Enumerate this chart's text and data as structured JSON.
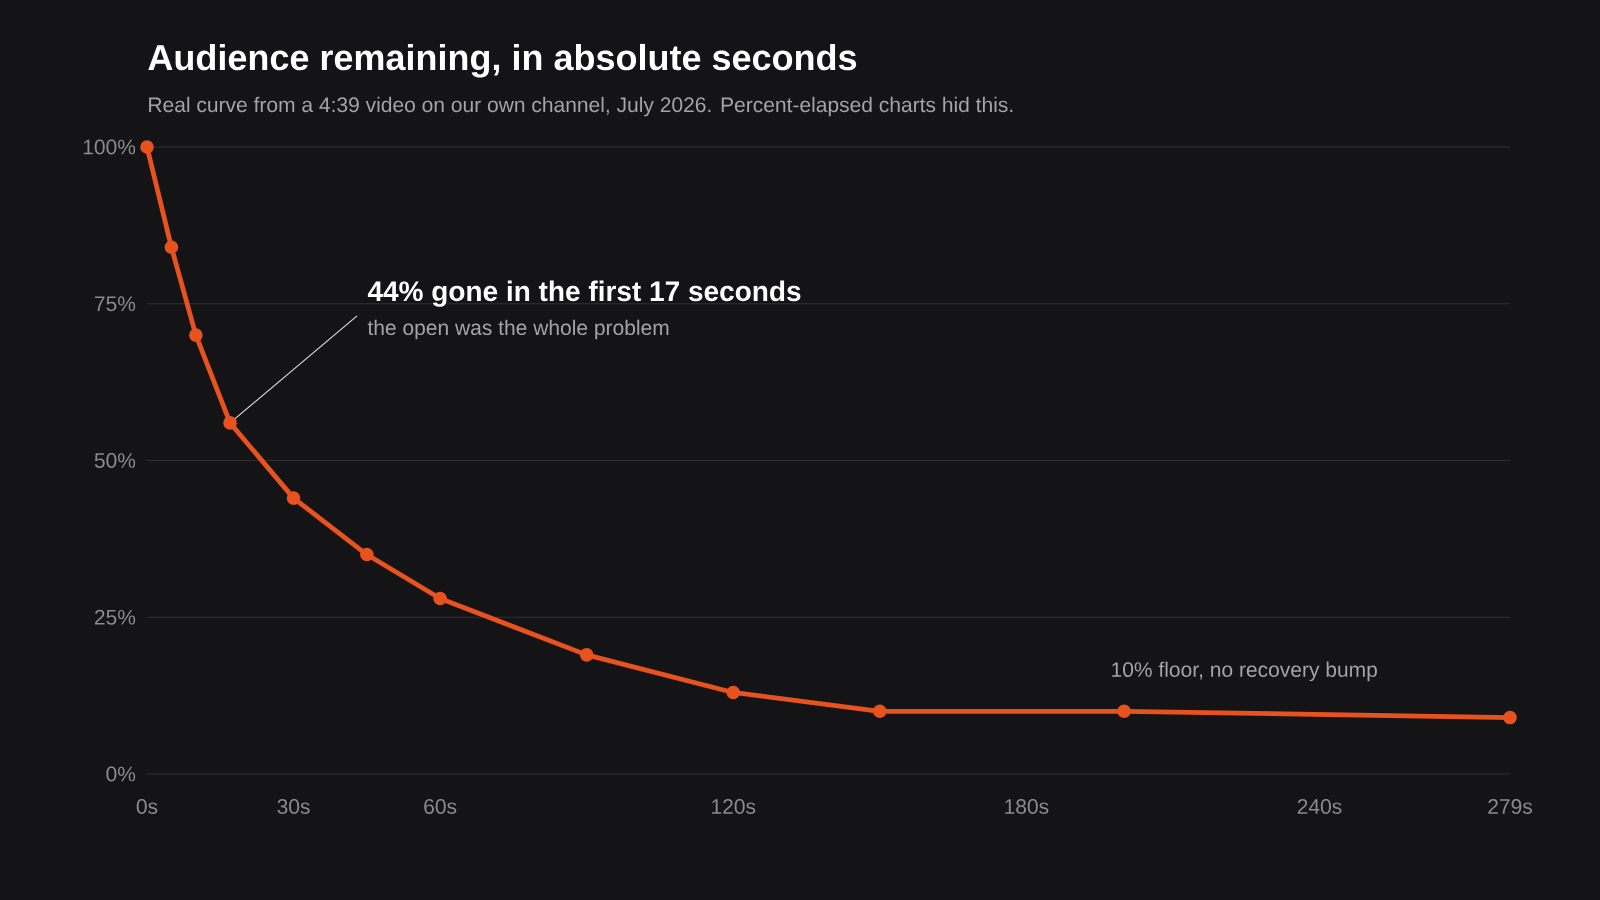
{
  "chart_data": {
    "type": "line",
    "title": "Audience remaining, in absolute seconds",
    "subtitle": "Real curve from a 4:39 video on our own channel, July 2026. Percent-elapsed charts hid this.",
    "x": [
      0,
      5,
      10,
      17,
      30,
      45,
      60,
      90,
      120,
      150,
      200,
      279
    ],
    "series": [
      {
        "color": "#e8521f",
        "values": [
          100,
          84,
          70,
          56,
          44,
          35,
          28,
          19,
          13,
          10,
          10,
          9
        ]
      }
    ],
    "xlim": [
      0,
      279
    ],
    "ylim": [
      0,
      100
    ],
    "xticks": [
      {
        "value": 0,
        "label": "0s"
      },
      {
        "value": 30,
        "label": "30s"
      },
      {
        "value": 60,
        "label": "60s"
      },
      {
        "value": 120,
        "label": "120s"
      },
      {
        "value": 180,
        "label": "180s"
      },
      {
        "value": 240,
        "label": "240s"
      },
      {
        "value": 279,
        "label": "279s"
      }
    ],
    "yticks": [
      {
        "value": 0,
        "label": "0%"
      },
      {
        "value": 25,
        "label": "25%"
      },
      {
        "value": 50,
        "label": "50%"
      },
      {
        "value": 75,
        "label": "75%"
      },
      {
        "value": 100,
        "label": "100%"
      }
    ],
    "grid": "y",
    "marker": "circle",
    "line_style": "solid",
    "annotations": [
      {
        "text": "44% gone in the first 17 seconds",
        "x": 17,
        "y": 56
      },
      "the open was the whole problem",
      "10% floor, no recovery bump"
    ]
  }
}
